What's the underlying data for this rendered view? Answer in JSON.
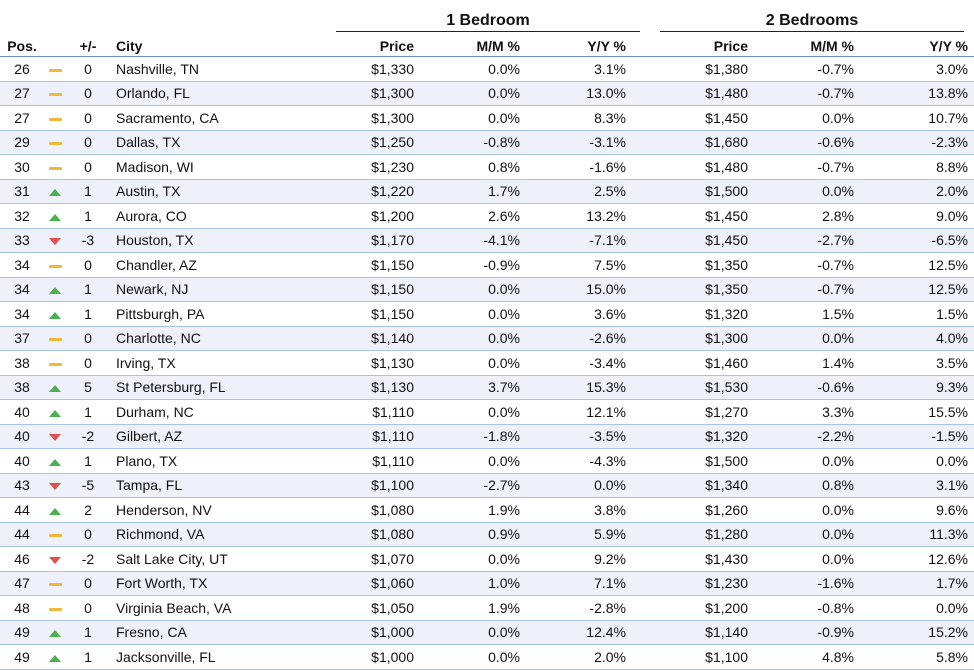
{
  "groups": {
    "one_bed": "1 Bedroom",
    "two_bed": "2 Bedrooms"
  },
  "headers": {
    "pos": "Pos.",
    "change": "+/-",
    "city": "City",
    "price1": "Price",
    "mm1": "M/M %",
    "yy1": "Y/Y %",
    "price2": "Price",
    "mm2": "M/M %",
    "yy2": "Y/Y %"
  },
  "colors": {
    "up": "#4caf50",
    "down": "#e05050",
    "flat": "#f0b73d",
    "row_alt": "#eef0fa",
    "rule": "#a9c3e6"
  },
  "rows": [
    {
      "pos": "26",
      "trend": "flat",
      "change": "0",
      "city": "Nashville, TN",
      "p1": "$1,330",
      "mm1": "0.0%",
      "yy1": "3.1%",
      "p2": "$1,380",
      "mm2": "-0.7%",
      "yy2": "3.0%"
    },
    {
      "pos": "27",
      "trend": "flat",
      "change": "0",
      "city": "Orlando, FL",
      "p1": "$1,300",
      "mm1": "0.0%",
      "yy1": "13.0%",
      "p2": "$1,480",
      "mm2": "-0.7%",
      "yy2": "13.8%"
    },
    {
      "pos": "27",
      "trend": "flat",
      "change": "0",
      "city": "Sacramento, CA",
      "p1": "$1,300",
      "mm1": "0.0%",
      "yy1": "8.3%",
      "p2": "$1,450",
      "mm2": "0.0%",
      "yy2": "10.7%"
    },
    {
      "pos": "29",
      "trend": "flat",
      "change": "0",
      "city": "Dallas, TX",
      "p1": "$1,250",
      "mm1": "-0.8%",
      "yy1": "-3.1%",
      "p2": "$1,680",
      "mm2": "-0.6%",
      "yy2": "-2.3%"
    },
    {
      "pos": "30",
      "trend": "flat",
      "change": "0",
      "city": "Madison, WI",
      "p1": "$1,230",
      "mm1": "0.8%",
      "yy1": "-1.6%",
      "p2": "$1,480",
      "mm2": "-0.7%",
      "yy2": "8.8%"
    },
    {
      "pos": "31",
      "trend": "up",
      "change": "1",
      "city": "Austin, TX",
      "p1": "$1,220",
      "mm1": "1.7%",
      "yy1": "2.5%",
      "p2": "$1,500",
      "mm2": "0.0%",
      "yy2": "2.0%"
    },
    {
      "pos": "32",
      "trend": "up",
      "change": "1",
      "city": "Aurora, CO",
      "p1": "$1,200",
      "mm1": "2.6%",
      "yy1": "13.2%",
      "p2": "$1,450",
      "mm2": "2.8%",
      "yy2": "9.0%"
    },
    {
      "pos": "33",
      "trend": "down",
      "change": "-3",
      "city": "Houston, TX",
      "p1": "$1,170",
      "mm1": "-4.1%",
      "yy1": "-7.1%",
      "p2": "$1,450",
      "mm2": "-2.7%",
      "yy2": "-6.5%"
    },
    {
      "pos": "34",
      "trend": "flat",
      "change": "0",
      "city": "Chandler, AZ",
      "p1": "$1,150",
      "mm1": "-0.9%",
      "yy1": "7.5%",
      "p2": "$1,350",
      "mm2": "-0.7%",
      "yy2": "12.5%"
    },
    {
      "pos": "34",
      "trend": "up",
      "change": "1",
      "city": "Newark, NJ",
      "p1": "$1,150",
      "mm1": "0.0%",
      "yy1": "15.0%",
      "p2": "$1,350",
      "mm2": "-0.7%",
      "yy2": "12.5%"
    },
    {
      "pos": "34",
      "trend": "up",
      "change": "1",
      "city": "Pittsburgh, PA",
      "p1": "$1,150",
      "mm1": "0.0%",
      "yy1": "3.6%",
      "p2": "$1,320",
      "mm2": "1.5%",
      "yy2": "1.5%"
    },
    {
      "pos": "37",
      "trend": "flat",
      "change": "0",
      "city": "Charlotte, NC",
      "p1": "$1,140",
      "mm1": "0.0%",
      "yy1": "-2.6%",
      "p2": "$1,300",
      "mm2": "0.0%",
      "yy2": "4.0%"
    },
    {
      "pos": "38",
      "trend": "flat",
      "change": "0",
      "city": "Irving, TX",
      "p1": "$1,130",
      "mm1": "0.0%",
      "yy1": "-3.4%",
      "p2": "$1,460",
      "mm2": "1.4%",
      "yy2": "3.5%"
    },
    {
      "pos": "38",
      "trend": "up",
      "change": "5",
      "city": "St Petersburg, FL",
      "p1": "$1,130",
      "mm1": "3.7%",
      "yy1": "15.3%",
      "p2": "$1,530",
      "mm2": "-0.6%",
      "yy2": "9.3%"
    },
    {
      "pos": "40",
      "trend": "up",
      "change": "1",
      "city": "Durham, NC",
      "p1": "$1,110",
      "mm1": "0.0%",
      "yy1": "12.1%",
      "p2": "$1,270",
      "mm2": "3.3%",
      "yy2": "15.5%"
    },
    {
      "pos": "40",
      "trend": "down",
      "change": "-2",
      "city": "Gilbert, AZ",
      "p1": "$1,110",
      "mm1": "-1.8%",
      "yy1": "-3.5%",
      "p2": "$1,320",
      "mm2": "-2.2%",
      "yy2": "-1.5%"
    },
    {
      "pos": "40",
      "trend": "up",
      "change": "1",
      "city": "Plano, TX",
      "p1": "$1,110",
      "mm1": "0.0%",
      "yy1": "-4.3%",
      "p2": "$1,500",
      "mm2": "0.0%",
      "yy2": "0.0%"
    },
    {
      "pos": "43",
      "trend": "down",
      "change": "-5",
      "city": "Tampa, FL",
      "p1": "$1,100",
      "mm1": "-2.7%",
      "yy1": "0.0%",
      "p2": "$1,340",
      "mm2": "0.8%",
      "yy2": "3.1%"
    },
    {
      "pos": "44",
      "trend": "up",
      "change": "2",
      "city": "Henderson, NV",
      "p1": "$1,080",
      "mm1": "1.9%",
      "yy1": "3.8%",
      "p2": "$1,260",
      "mm2": "0.0%",
      "yy2": "9.6%"
    },
    {
      "pos": "44",
      "trend": "flat",
      "change": "0",
      "city": "Richmond, VA",
      "p1": "$1,080",
      "mm1": "0.9%",
      "yy1": "5.9%",
      "p2": "$1,280",
      "mm2": "0.0%",
      "yy2": "11.3%"
    },
    {
      "pos": "46",
      "trend": "down",
      "change": "-2",
      "city": "Salt Lake City, UT",
      "p1": "$1,070",
      "mm1": "0.0%",
      "yy1": "9.2%",
      "p2": "$1,430",
      "mm2": "0.0%",
      "yy2": "12.6%"
    },
    {
      "pos": "47",
      "trend": "flat",
      "change": "0",
      "city": "Fort Worth, TX",
      "p1": "$1,060",
      "mm1": "1.0%",
      "yy1": "7.1%",
      "p2": "$1,230",
      "mm2": "-1.6%",
      "yy2": "1.7%"
    },
    {
      "pos": "48",
      "trend": "flat",
      "change": "0",
      "city": "Virginia Beach, VA",
      "p1": "$1,050",
      "mm1": "1.9%",
      "yy1": "-2.8%",
      "p2": "$1,200",
      "mm2": "-0.8%",
      "yy2": "0.0%"
    },
    {
      "pos": "49",
      "trend": "up",
      "change": "1",
      "city": "Fresno, CA",
      "p1": "$1,000",
      "mm1": "0.0%",
      "yy1": "12.4%",
      "p2": "$1,140",
      "mm2": "-0.9%",
      "yy2": "15.2%"
    },
    {
      "pos": "49",
      "trend": "up",
      "change": "1",
      "city": "Jacksonville, FL",
      "p1": "$1,000",
      "mm1": "0.0%",
      "yy1": "2.0%",
      "p2": "$1,100",
      "mm2": "4.8%",
      "yy2": "5.8%"
    }
  ]
}
